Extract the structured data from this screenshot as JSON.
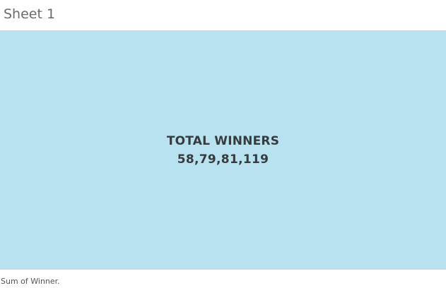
{
  "sheet": {
    "title": "Sheet 1"
  },
  "mark": {
    "label": "TOTAL WINNERS",
    "value": "58,79,81,119",
    "fill_color": "#b9e2f0",
    "text_color": "#353b3f"
  },
  "caption": {
    "text": "Sum of Winner."
  }
}
